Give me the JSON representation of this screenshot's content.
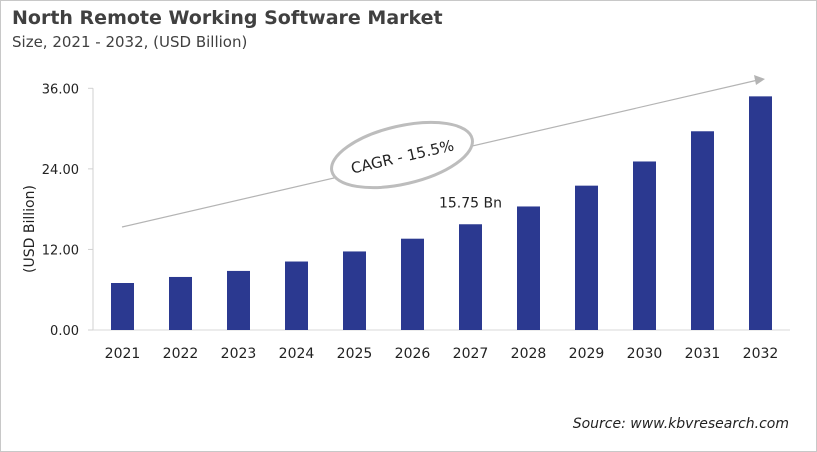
{
  "chart_data": {
    "type": "bar",
    "title": "North Remote Working Software Market",
    "subtitle": "Size, 2021 - 2032, (USD Billion)",
    "ylabel": "(USD Billion)",
    "xlabel": "",
    "categories": [
      "2021",
      "2022",
      "2023",
      "2024",
      "2025",
      "2026",
      "2027",
      "2028",
      "2029",
      "2030",
      "2031",
      "2032"
    ],
    "values": [
      7.0,
      7.9,
      8.8,
      10.2,
      11.7,
      13.6,
      15.75,
      18.4,
      21.5,
      25.1,
      29.6,
      34.8
    ],
    "ylim": [
      0,
      36
    ],
    "yticks": [
      "0.00",
      "12.00",
      "24.00",
      "36.00"
    ],
    "grid": false,
    "bar_color": "#2b3990",
    "annotations": {
      "data_label": "15.75 Bn",
      "data_label_category": "2027",
      "cagr": "CAGR - 15.5%"
    },
    "source": "Source: www.kbvresearch.com"
  }
}
